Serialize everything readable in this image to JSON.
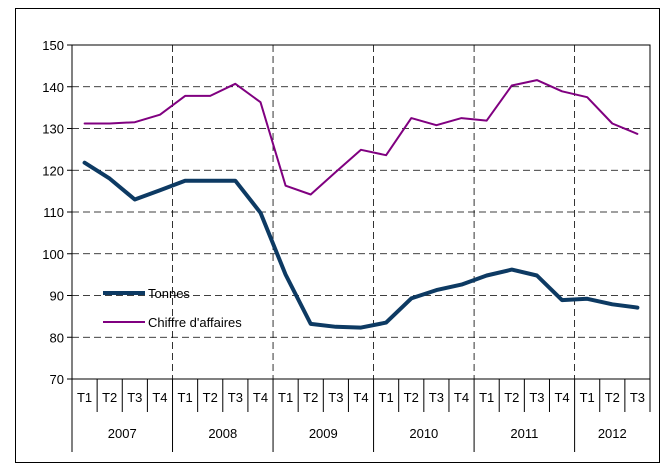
{
  "chart_data": {
    "type": "line",
    "title": "",
    "xlabel": "",
    "ylabel": "",
    "ylim": [
      70,
      150
    ],
    "yticks": [
      70,
      80,
      90,
      100,
      110,
      120,
      130,
      140,
      150
    ],
    "grid": "dashed vertical and horizontal",
    "legend_position": "left-center",
    "x": [
      "T1",
      "T2",
      "T3",
      "T4",
      "T1",
      "T2",
      "T3",
      "T4",
      "T1",
      "T2",
      "T3",
      "T4",
      "T1",
      "T2",
      "T3",
      "T4",
      "T1",
      "T2",
      "T3",
      "T4",
      "T1",
      "T2",
      "T3"
    ],
    "years": [
      {
        "label": "2007",
        "quarters": 4
      },
      {
        "label": "2008",
        "quarters": 4
      },
      {
        "label": "2009",
        "quarters": 4
      },
      {
        "label": "2010",
        "quarters": 4
      },
      {
        "label": "2011",
        "quarters": 4
      },
      {
        "label": "2012",
        "quarters": 3
      }
    ],
    "series": [
      {
        "name": "Tonnes",
        "color": "#0d3a63",
        "values": [
          121.8,
          118.0,
          113.0,
          115.2,
          117.5,
          117.5,
          117.5,
          109.8,
          95.0,
          83.2,
          82.5,
          82.3,
          83.5,
          89.3,
          91.3,
          92.6,
          94.8,
          96.2,
          94.8,
          88.9,
          89.2,
          87.9,
          87.1
        ]
      },
      {
        "name": "Chiffre d'affaires",
        "color": "#800080",
        "values": [
          131.2,
          131.2,
          131.5,
          133.3,
          137.8,
          137.8,
          140.7,
          136.3,
          116.3,
          114.2,
          119.6,
          124.9,
          123.6,
          132.5,
          130.8,
          132.5,
          131.9,
          140.3,
          141.6,
          138.9,
          137.5,
          131.2,
          128.7
        ]
      }
    ]
  }
}
